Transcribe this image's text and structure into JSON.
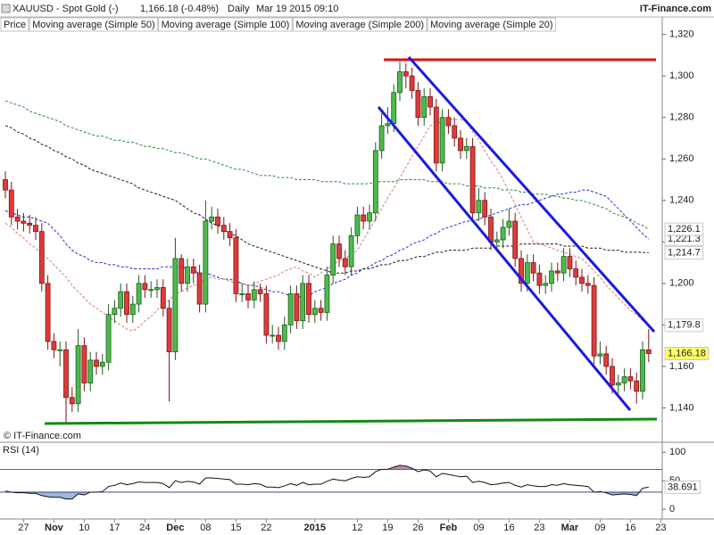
{
  "header": {
    "symbol": "XAUUSD - Spot Gold (-)",
    "quote": "1,166.18 (-0.48%)",
    "interval": "Daily",
    "timestamp": "Mar 19 2015 09:10",
    "brand": "IT-Finance.com",
    "watermark": "© IT-Finance.com"
  },
  "chart_data": [
    {
      "type": "candlestick",
      "price_label": "Price",
      "close_label": "1,166.18",
      "up_color": "#4cbb4c",
      "up_edge": "#1d5e1d",
      "down_color": "#e03a3a",
      "down_edge": "#7a1515",
      "categories": [
        null,
        null,
        null,
        "27",
        null,
        null,
        null,
        null,
        "Nov",
        null,
        null,
        null,
        null,
        "10",
        null,
        null,
        null,
        null,
        "17",
        null,
        null,
        null,
        null,
        "24",
        null,
        null,
        null,
        null,
        "Dec",
        null,
        null,
        null,
        null,
        "08",
        null,
        null,
        null,
        null,
        "15",
        null,
        null,
        null,
        null,
        "22",
        null,
        null,
        null,
        null,
        null,
        null,
        null,
        "2015",
        null,
        null,
        null,
        null,
        null,
        null,
        "12",
        null,
        null,
        null,
        null,
        "19",
        null,
        null,
        null,
        null,
        "26",
        null,
        null,
        null,
        null,
        "Feb",
        null,
        null,
        null,
        null,
        "09",
        null,
        null,
        null,
        null,
        "16",
        null,
        null,
        null,
        null,
        "23",
        null,
        null,
        null,
        null,
        "Mar",
        null,
        null,
        null,
        null,
        "09",
        null,
        null,
        null,
        null,
        "16",
        null,
        null,
        null,
        null,
        "23"
      ],
      "open": [
        1250,
        1245,
        1232,
        1230,
        1229,
        1228,
        1225,
        1200,
        1172,
        1168,
        1168,
        1145,
        1142,
        1170,
        1152,
        1163,
        1160,
        1162,
        1185,
        1188,
        1196,
        1185,
        1190,
        1200,
        1197,
        1197,
        1198,
        1188,
        1167,
        1212,
        1200,
        1208,
        1205,
        1190,
        1230,
        1232,
        1228,
        1225,
        1222,
        1195,
        1195,
        1192,
        1197,
        1195,
        1175,
        1175,
        1172,
        1180,
        1195,
        1182,
        1200,
        1185,
        1188,
        1186,
        1204,
        1219,
        1212,
        1208,
        1223,
        1233,
        1230,
        1234,
        1264,
        1276,
        1277,
        1292,
        1302,
        1300,
        1293,
        1280,
        1290,
        1285,
        1258,
        1280,
        1276,
        1270,
        1264,
        1266,
        1234,
        1240,
        1232,
        1220,
        1221,
        1227,
        1230,
        1212,
        1200,
        1210,
        1205,
        1199,
        1200,
        1206,
        1205,
        1213,
        1207,
        1203,
        1200,
        1199,
        1165,
        1166,
        1160,
        1151,
        1152,
        1155,
        1153,
        1148,
        1168,
        null,
        null
      ],
      "high": [
        1254,
        1249,
        1236,
        1234,
        1233,
        1232,
        1229,
        1204,
        1176,
        1172,
        1172,
        1150,
        1178,
        1174,
        1167,
        1167,
        1166,
        1190,
        1192,
        1200,
        1200,
        1194,
        1204,
        1204,
        1201,
        1202,
        1202,
        1192,
        1222,
        1214,
        1212,
        1212,
        1209,
        1240,
        1237,
        1236,
        1232,
        1229,
        1226,
        1200,
        1199,
        1201,
        1200,
        1199,
        1180,
        1179,
        1184,
        1199,
        1199,
        1204,
        1204,
        1192,
        1192,
        1208,
        1223,
        1223,
        1216,
        1227,
        1237,
        1237,
        1238,
        1268,
        1282,
        1285,
        1296,
        1307,
        1306,
        1304,
        1297,
        1294,
        1294,
        1289,
        1284,
        1284,
        1280,
        1274,
        1270,
        1270,
        1246,
        1244,
        1236,
        1225,
        1231,
        1236,
        1234,
        1216,
        1214,
        1214,
        1209,
        1204,
        1210,
        1210,
        1217,
        1217,
        1211,
        1207,
        1204,
        1203,
        1172,
        1170,
        1164,
        1156,
        1159,
        1159,
        1157,
        1172,
        1178,
        null,
        null
      ],
      "low": [
        1241,
        1228,
        1226,
        1225,
        1224,
        1221,
        1196,
        1168,
        1164,
        1160,
        1133,
        1138,
        1138,
        1148,
        1148,
        1156,
        1156,
        1158,
        1181,
        1184,
        1181,
        1181,
        1186,
        1193,
        1193,
        1193,
        1184,
        1143,
        1163,
        1196,
        1196,
        1200,
        1186,
        1186,
        1226,
        1224,
        1221,
        1218,
        1191,
        1191,
        1188,
        1188,
        1191,
        1171,
        1171,
        1168,
        1168,
        1176,
        1178,
        1178,
        1181,
        1181,
        1182,
        1182,
        1200,
        1208,
        1204,
        1204,
        1219,
        1226,
        1226,
        1230,
        1260,
        1272,
        1273,
        1288,
        1294,
        1289,
        1276,
        1276,
        1281,
        1254,
        1254,
        1272,
        1266,
        1260,
        1260,
        1230,
        1230,
        1228,
        1216,
        1216,
        1217,
        1223,
        1208,
        1196,
        1196,
        1201,
        1195,
        1195,
        1196,
        1201,
        1201,
        1203,
        1199,
        1196,
        1195,
        1161,
        1161,
        1156,
        1147,
        1147,
        1148,
        1149,
        1142,
        1144,
        1162,
        null,
        null
      ],
      "close": [
        1245,
        1232,
        1230,
        1229,
        1228,
        1225,
        1200,
        1172,
        1168,
        1168,
        1145,
        1142,
        1170,
        1152,
        1163,
        1160,
        1162,
        1185,
        1188,
        1196,
        1185,
        1190,
        1200,
        1197,
        1197,
        1198,
        1188,
        1167,
        1212,
        1200,
        1208,
        1205,
        1190,
        1230,
        1232,
        1228,
        1225,
        1222,
        1195,
        1195,
        1192,
        1197,
        1195,
        1175,
        1175,
        1172,
        1180,
        1195,
        1182,
        1200,
        1185,
        1188,
        1186,
        1204,
        1219,
        1212,
        1208,
        1223,
        1233,
        1230,
        1234,
        1264,
        1276,
        1277,
        1292,
        1302,
        1300,
        1293,
        1280,
        1290,
        1285,
        1258,
        1280,
        1276,
        1270,
        1264,
        1266,
        1234,
        1240,
        1232,
        1220,
        1221,
        1227,
        1230,
        1212,
        1200,
        1210,
        1205,
        1199,
        1200,
        1206,
        1205,
        1213,
        1207,
        1203,
        1200,
        1199,
        1165,
        1166,
        1160,
        1151,
        1152,
        1155,
        1153,
        1148,
        1168,
        1166.18,
        null,
        null
      ],
      "series": [
        {
          "name": "Moving average (Simple 50)",
          "color": "#2b2bd6",
          "last_label": "1,221.3",
          "values": [
            1235,
            1234,
            1233,
            1232,
            1232,
            1231,
            1230,
            1229,
            1226,
            1223,
            1219,
            1216,
            1214,
            1213,
            1211,
            1210,
            1210,
            1209,
            1209,
            1208,
            1208,
            1207,
            1207,
            1207,
            1207,
            1207,
            1208,
            1208,
            1208,
            1208,
            1207,
            1206,
            1205,
            1205,
            1204,
            1203,
            1202,
            1202,
            1201,
            1200,
            1199,
            1199,
            1198,
            1197,
            1196,
            1196,
            1195,
            1194,
            1194,
            1193,
            1194,
            1196,
            1197,
            1198,
            1200,
            1201,
            1202,
            1204,
            1205,
            1207,
            1208,
            1210,
            1211,
            1213,
            1214,
            1216,
            1217,
            1219,
            1220,
            1221,
            1223,
            1224,
            1226,
            1227,
            1228,
            1229,
            1230,
            1230,
            1231,
            1232,
            1233,
            1234,
            1235,
            1236,
            1237,
            1238,
            1238,
            1239,
            1240,
            1241,
            1242,
            1243,
            1243,
            1244,
            1244,
            1245,
            1245,
            1244,
            1243,
            1242,
            1239,
            1236,
            1233,
            1230,
            1227,
            1224,
            1221.3,
            null,
            null
          ]
        },
        {
          "name": "Moving average (Simple 100)",
          "color": "#1a1a1a",
          "last_label": "1,214.7",
          "values": [
            1276,
            1275,
            1273,
            1272,
            1270,
            1269,
            1267,
            1266,
            1264,
            1263,
            1261,
            1260,
            1258,
            1257,
            1255,
            1254,
            1253,
            1252,
            1251,
            1250,
            1249,
            1248,
            1246,
            1245,
            1244,
            1243,
            1242,
            1241,
            1240,
            1238,
            1236,
            1234,
            1233,
            1231,
            1229,
            1228,
            1226,
            1224,
            1223,
            1221,
            1219,
            1218,
            1217,
            1216,
            1215,
            1214,
            1213,
            1212,
            1211,
            1210,
            1209,
            1208,
            1207,
            1206,
            1205,
            1205,
            1205,
            1206,
            1206,
            1207,
            1207,
            1208,
            1209,
            1209,
            1210,
            1211,
            1211,
            1212,
            1213,
            1213,
            1214,
            1215,
            1215,
            1216,
            1216,
            1216,
            1216,
            1217,
            1217,
            1217,
            1217,
            1218,
            1218,
            1218,
            1218,
            1219,
            1219,
            1219,
            1219,
            1219,
            1219,
            1219,
            1218,
            1218,
            1218,
            1218,
            1217,
            1217,
            1217,
            1216,
            1216,
            1216,
            1215,
            1215,
            1215,
            1215,
            1214.7,
            null,
            null
          ]
        },
        {
          "name": "Moving average (Simple 200)",
          "color": "#2a8a3a",
          "last_label": "1,226.1",
          "values": [
            1288,
            1287,
            1286,
            1285,
            1283,
            1282,
            1281,
            1280,
            1279,
            1278,
            1276,
            1275,
            1274,
            1273,
            1272,
            1271,
            1271,
            1270,
            1269,
            1269,
            1268,
            1268,
            1267,
            1266,
            1266,
            1265,
            1265,
            1264,
            1263,
            1263,
            1262,
            1261,
            1260,
            1260,
            1259,
            1258,
            1257,
            1256,
            1255,
            1255,
            1254,
            1253,
            1252,
            1252,
            1252,
            1251,
            1251,
            1251,
            1250,
            1250,
            1250,
            1250,
            1249,
            1249,
            1249,
            1249,
            1248,
            1248,
            1248,
            1248,
            1248,
            1249,
            1249,
            1249,
            1249,
            1250,
            1250,
            1250,
            1250,
            1250,
            1249,
            1249,
            1249,
            1248,
            1248,
            1248,
            1247,
            1247,
            1247,
            1246,
            1246,
            1246,
            1245,
            1245,
            1245,
            1244,
            1244,
            1243,
            1243,
            1243,
            1242,
            1242,
            1241,
            1241,
            1240,
            1240,
            1239,
            1238,
            1237,
            1236,
            1234,
            1233,
            1232,
            1231,
            1229,
            1228,
            1226.1,
            null,
            null
          ]
        },
        {
          "name": "Moving average (Simple 20)",
          "color": "#e07a7a",
          "last_label": "1,179.8",
          "values": [
            1229,
            1227,
            1224,
            1222,
            1219,
            1217,
            1214,
            1212,
            1209,
            1206,
            1203,
            1199,
            1196,
            1193,
            1190,
            1188,
            1186,
            1184,
            1182,
            1180,
            1178,
            1177,
            1179,
            1182,
            1184,
            1187,
            1190,
            1192,
            1195,
            1196,
            1198,
            1199,
            1200,
            1202,
            1203,
            1202,
            1202,
            1201,
            1200,
            1200,
            1199,
            1200,
            1201,
            1202,
            1203,
            1204,
            1206,
            1207,
            1208,
            1206,
            1205,
            1203,
            1205,
            1207,
            1209,
            1211,
            1212,
            1214,
            1216,
            1221,
            1226,
            1231,
            1236,
            1241,
            1246,
            1251,
            1256,
            1261,
            1266,
            1271,
            1276,
            1277,
            1278,
            1279,
            1279,
            1279,
            1278,
            1273,
            1269,
            1264,
            1259,
            1255,
            1250,
            1244,
            1238,
            1232,
            1226,
            1220,
            1219,
            1218,
            1217,
            1216,
            1215,
            1214,
            1213,
            1212,
            1209,
            1206,
            1203,
            1199,
            1196,
            1193,
            1190,
            1187,
            1185,
            1182,
            1179.8,
            null,
            null
          ]
        }
      ],
      "ylim": [
        1126,
        1328
      ],
      "yticks": [
        {
          "value": 1140,
          "label": "1,140"
        },
        {
          "value": 1160,
          "label": "1,160"
        },
        {
          "value": 1180,
          "label": "1,180"
        },
        {
          "value": 1200,
          "label": "1,200"
        },
        {
          "value": 1220,
          "label": "1,220"
        },
        {
          "value": 1240,
          "label": "1,240"
        },
        {
          "value": 1260,
          "label": "1,260"
        },
        {
          "value": 1280,
          "label": "1,280"
        },
        {
          "value": 1300,
          "label": "1,300"
        },
        {
          "value": 1320,
          "label": "1,320"
        }
      ],
      "grid": false
    },
    {
      "type": "line",
      "title": "RSI (14)",
      "color": "#111111",
      "last_label": "38.691",
      "overbought_color": "#b48ab4",
      "oversold_color": "#9db8d8",
      "values": [
        32,
        30,
        29,
        29,
        28,
        28,
        24,
        22,
        21,
        21,
        18,
        18,
        27,
        25,
        30,
        30,
        31,
        40,
        42,
        46,
        43,
        45,
        48,
        47,
        47,
        47,
        45,
        38,
        50,
        47,
        49,
        48,
        44,
        55,
        55,
        54,
        53,
        52,
        44,
        44,
        43,
        45,
        44,
        39,
        39,
        38,
        41,
        45,
        42,
        47,
        43,
        44,
        44,
        49,
        53,
        51,
        50,
        54,
        57,
        56,
        57,
        66,
        70,
        70,
        74,
        77,
        76,
        72,
        66,
        69,
        67,
        57,
        63,
        61,
        59,
        57,
        58,
        47,
        49,
        47,
        43,
        44,
        46,
        47,
        42,
        39,
        43,
        41,
        40,
        40,
        43,
        42,
        45,
        43,
        42,
        41,
        40,
        30,
        31,
        29,
        25,
        26,
        27,
        26,
        24,
        37,
        38.691,
        null,
        null
      ],
      "levels": [
        70,
        30
      ],
      "ylim": [
        -17,
        116
      ],
      "yticks": [
        0,
        50,
        100
      ]
    }
  ]
}
